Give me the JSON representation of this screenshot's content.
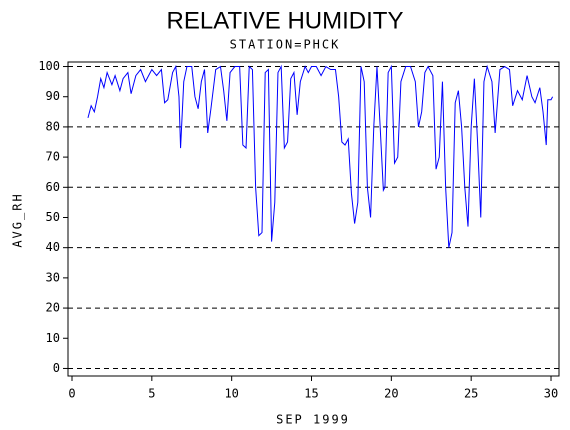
{
  "chart_data": {
    "type": "line",
    "title": "RELATIVE HUMIDITY",
    "subtitle": "STATION=PHCK",
    "x_label": "SEP 1999",
    "y_label": "AVG_RH",
    "xlim": [
      -0.25,
      30.5
    ],
    "ylim": [
      -2.5,
      101.5
    ],
    "xticks": [
      0,
      5,
      10,
      15,
      20,
      25,
      30
    ],
    "yticks": [
      0,
      10,
      20,
      30,
      40,
      50,
      60,
      70,
      80,
      90,
      100
    ],
    "grid": true,
    "x": [
      1.0,
      1.2,
      1.4,
      1.6,
      1.8,
      2.0,
      2.2,
      2.5,
      2.7,
      3.0,
      3.2,
      3.5,
      3.7,
      4.0,
      4.3,
      4.6,
      5.0,
      5.3,
      5.6,
      5.8,
      6.0,
      6.3,
      6.5,
      6.7,
      6.8,
      7.0,
      7.2,
      7.5,
      7.7,
      7.9,
      8.1,
      8.3,
      8.5,
      8.7,
      9.0,
      9.3,
      9.5,
      9.7,
      9.9,
      10.2,
      10.5,
      10.7,
      10.9,
      11.1,
      11.3,
      11.5,
      11.7,
      11.9,
      12.1,
      12.3,
      12.5,
      12.7,
      12.9,
      13.1,
      13.3,
      13.5,
      13.7,
      13.9,
      14.1,
      14.3,
      14.6,
      14.8,
      15.0,
      15.3,
      15.6,
      15.9,
      16.2,
      16.5,
      16.7,
      16.9,
      17.1,
      17.3,
      17.5,
      17.7,
      17.9,
      18.1,
      18.3,
      18.5,
      18.7,
      18.9,
      19.1,
      19.3,
      19.5,
      19.6,
      19.8,
      20.0,
      20.2,
      20.4,
      20.6,
      20.9,
      21.2,
      21.5,
      21.7,
      21.9,
      22.1,
      22.3,
      22.6,
      22.8,
      23.0,
      23.2,
      23.4,
      23.6,
      23.8,
      24.0,
      24.2,
      24.4,
      24.6,
      24.8,
      25.0,
      25.2,
      25.4,
      25.6,
      25.8,
      26.0,
      26.3,
      26.5,
      26.8,
      27.1,
      27.4,
      27.6,
      27.9,
      28.2,
      28.5,
      28.8,
      29.0,
      29.3,
      29.5,
      29.7,
      29.8,
      30.0,
      30.1
    ],
    "series": [
      {
        "color": "#0000ff",
        "values": [
          83,
          87,
          85,
          90,
          96,
          93,
          98,
          94,
          97,
          92,
          96,
          98,
          91,
          97,
          99,
          95,
          99,
          97,
          99,
          88,
          89,
          98,
          100,
          90,
          73,
          95,
          100,
          100,
          90,
          86,
          95,
          99,
          78,
          86,
          99,
          100,
          92,
          82,
          98,
          100,
          100,
          74,
          73,
          100,
          99,
          60,
          44,
          45,
          98,
          99,
          42,
          55,
          98,
          100,
          73,
          75,
          96,
          98,
          84,
          95,
          100,
          98,
          100,
          100,
          97,
          100,
          99,
          99,
          90,
          75,
          74,
          76,
          58,
          48,
          55,
          100,
          95,
          60,
          50,
          80,
          100,
          80,
          59,
          60,
          98,
          100,
          68,
          70,
          95,
          100,
          100,
          95,
          80,
          85,
          98,
          100,
          97,
          66,
          70,
          95,
          60,
          40,
          45,
          88,
          92,
          80,
          60,
          47,
          80,
          96,
          75,
          50,
          95,
          100,
          95,
          78,
          99,
          100,
          99,
          87,
          92,
          89,
          97,
          90,
          88,
          93,
          85,
          74,
          89,
          89,
          90
        ]
      }
    ]
  }
}
